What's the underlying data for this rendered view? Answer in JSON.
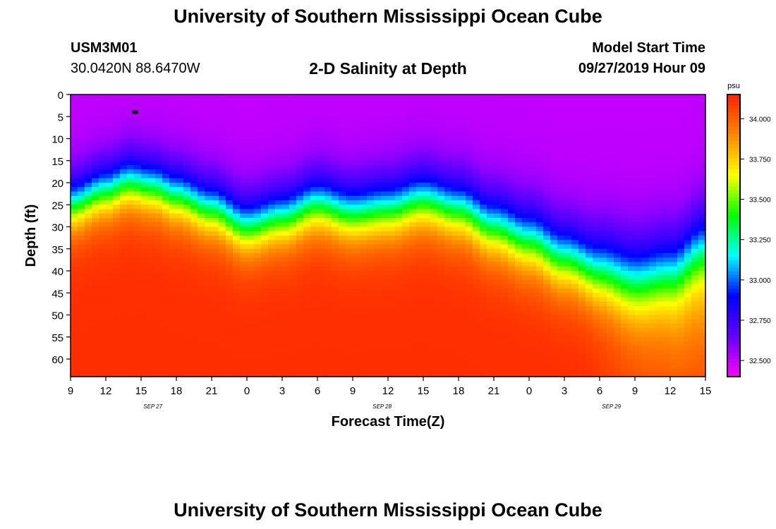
{
  "header": {
    "title": "University of Southern Mississippi Ocean Cube",
    "footer_title": "University of Southern Mississippi Ocean Cube",
    "station_id": "USM3M01",
    "station_location": "30.0420N 88.6470W",
    "chart_title": "2-D Salinity at Depth",
    "model_start_label": "Model Start Time",
    "model_start_value": "09/27/2019 Hour 09"
  },
  "colors": {
    "background": "#ffffff",
    "text": "#000000",
    "scale": [
      "#ff00ff",
      "#6600ff",
      "#0000ff",
      "#00ffff",
      "#00ff00",
      "#ffff00",
      "#ff8800",
      "#ff2200"
    ]
  },
  "chart_data": {
    "type": "heatmap",
    "variable": "Salinity",
    "title": "2-D Salinity at Depth",
    "xlabel": "Forecast Time(Z)",
    "ylabel": "Depth (ft)",
    "x_tick_labels": [
      "9",
      "12",
      "15",
      "18",
      "21",
      "0",
      "3",
      "6",
      "9",
      "12",
      "15",
      "18",
      "21",
      "0",
      "3",
      "6",
      "9",
      "12",
      "15"
    ],
    "x_hours_range": [
      0,
      54
    ],
    "date_labels": [
      {
        "label": "SEP 27",
        "hour": 7
      },
      {
        "label": "SEP 28",
        "hour": 26.5
      },
      {
        "label": "SEP 29",
        "hour": 46
      }
    ],
    "y_ticks": [
      0,
      5,
      10,
      15,
      20,
      25,
      30,
      35,
      40,
      45,
      50,
      55,
      60
    ],
    "y_range": [
      0,
      64
    ],
    "colorbar": {
      "unit": "psu",
      "range": [
        32.4,
        34.15
      ],
      "ticks": [
        "32.500",
        "32.750",
        "33.000",
        "33.250",
        "33.500",
        "33.750",
        "34.000"
      ],
      "tick_values": [
        32.5,
        32.75,
        33.0,
        33.25,
        33.5,
        33.75,
        34.0
      ]
    },
    "pycnocline_depth_ft": {
      "hours": [
        0,
        3,
        5,
        7,
        9,
        12,
        15,
        18,
        21,
        24,
        27,
        30,
        33,
        36,
        39,
        42,
        45,
        48,
        51,
        54
      ],
      "depths": [
        25,
        22,
        20,
        21,
        23,
        26,
        30,
        28,
        25,
        27,
        26,
        24,
        26,
        30,
        33,
        37,
        40,
        42,
        40,
        34
      ]
    },
    "pycnocline_width_ft": {
      "hours": [
        0,
        12,
        30,
        42,
        48,
        54
      ],
      "widths": [
        8,
        8.5,
        9,
        10,
        11.5,
        11
      ]
    },
    "surface_salinity": 32.5,
    "bottom_salinity": 34.12,
    "bottom_fresh_hours": [
      44,
      54
    ],
    "bottom_fresh_salinity": 33.75,
    "station_marker": {
      "hour": 5.5,
      "depth": 4
    }
  }
}
